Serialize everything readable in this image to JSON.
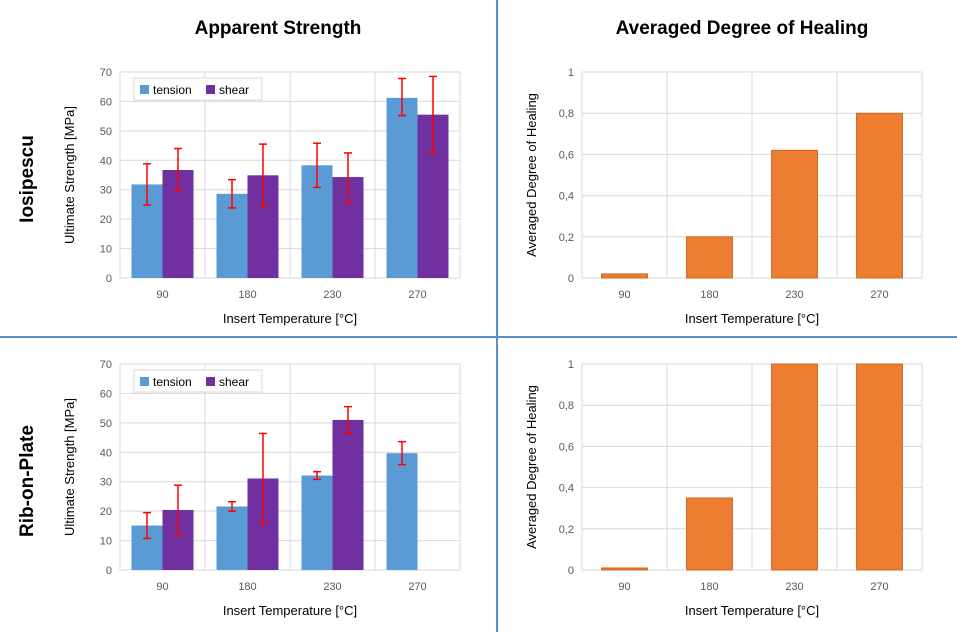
{
  "column_titles": [
    "Apparent Strength",
    "Averaged Degree of Healing"
  ],
  "row_labels": [
    "Iosipescu",
    "Rib-on-Plate"
  ],
  "colors": {
    "tension": "#5b9bd5",
    "shear": "#7030a0",
    "healing": "#ed7d31",
    "error": "#ff0000",
    "grid": "#d9d9d9",
    "divider": "#5b8fc7"
  },
  "chart_data": [
    {
      "id": "iosipescu-strength",
      "type": "bar",
      "categories": [
        "90",
        "180",
        "230",
        "270"
      ],
      "series": [
        {
          "name": "tension",
          "values": [
            31.8,
            28.6,
            38.3,
            61.2
          ],
          "err_low": [
            7,
            4.8,
            7.5,
            6
          ],
          "err_high": [
            7,
            4.8,
            7.5,
            6.6
          ]
        },
        {
          "name": "shear",
          "values": [
            36.7,
            34.9,
            34.3,
            55.5
          ],
          "err_low": [
            7.3,
            10.6,
            8.6,
            13
          ],
          "err_high": [
            7.3,
            10.6,
            8.2,
            13
          ]
        }
      ],
      "xlabel": "Insert Temperature [°C]",
      "ylabel": "Ultimate Strength [MPa]",
      "ylim": [
        0,
        70
      ],
      "yticks": [
        "0",
        "10",
        "20",
        "30",
        "40",
        "50",
        "60",
        "70"
      ],
      "legend": [
        "tension",
        "shear"
      ]
    },
    {
      "id": "iosipescu-healing",
      "type": "bar",
      "categories": [
        "90",
        "180",
        "230",
        "270"
      ],
      "series": [
        {
          "name": "healing",
          "values": [
            0.02,
            0.2,
            0.62,
            0.8
          ]
        }
      ],
      "xlabel": "Insert Temperature [°C]",
      "ylabel": "Averaged Degree of Healing",
      "ylim": [
        0,
        1
      ],
      "yticks": [
        "0",
        "0,2",
        "0,4",
        "0,6",
        "0,8",
        "1"
      ]
    },
    {
      "id": "ribplate-strength",
      "type": "bar",
      "categories": [
        "90",
        "180",
        "230",
        "270"
      ],
      "series": [
        {
          "name": "tension",
          "values": [
            15.1,
            21.6,
            32.1,
            39.7
          ],
          "err_low": [
            4.4,
            1.6,
            1.3,
            3.9
          ],
          "err_high": [
            4.4,
            1.6,
            1.3,
            3.9
          ]
        },
        {
          "name": "shear",
          "values": [
            20.4,
            31.1,
            51,
            null
          ],
          "err_low": [
            8.4,
            15.3,
            4.5,
            0
          ],
          "err_high": [
            8.4,
            15.3,
            4.5,
            0
          ]
        }
      ],
      "xlabel": "Insert Temperature [°C]",
      "ylabel": "Ultimate Strength [MPa]",
      "ylim": [
        0,
        70
      ],
      "yticks": [
        "0",
        "10",
        "20",
        "30",
        "40",
        "50",
        "60",
        "70"
      ],
      "legend": [
        "tension",
        "shear"
      ]
    },
    {
      "id": "ribplate-healing",
      "type": "bar",
      "categories": [
        "90",
        "180",
        "230",
        "270"
      ],
      "series": [
        {
          "name": "healing",
          "values": [
            0.01,
            0.35,
            1,
            1
          ]
        }
      ],
      "xlabel": "Insert Temperature [°C]",
      "ylabel": "Averaged Degree of Healing",
      "ylim": [
        0,
        1
      ],
      "yticks": [
        "0",
        "0,2",
        "0,4",
        "0,6",
        "0,8",
        "1"
      ]
    }
  ]
}
